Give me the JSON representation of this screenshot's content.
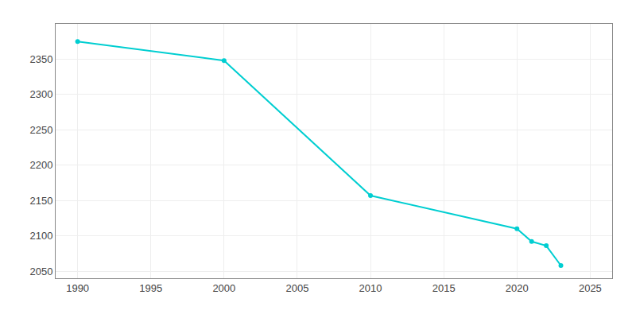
{
  "chart_data": {
    "type": "line",
    "x": [
      1990,
      2000,
      2010,
      2020,
      2021,
      2022,
      2023
    ],
    "values": [
      2375,
      2348,
      2157,
      2110,
      2092,
      2086,
      2058
    ],
    "color": "#00CED1",
    "marker": "circle",
    "xlim": [
      1988.5,
      2026.5
    ],
    "ylim": [
      2040,
      2400
    ],
    "xticks": [
      1990,
      1995,
      2000,
      2005,
      2010,
      2015,
      2020,
      2025
    ],
    "yticks": [
      2050,
      2100,
      2150,
      2200,
      2250,
      2300,
      2350
    ],
    "grid": true
  }
}
